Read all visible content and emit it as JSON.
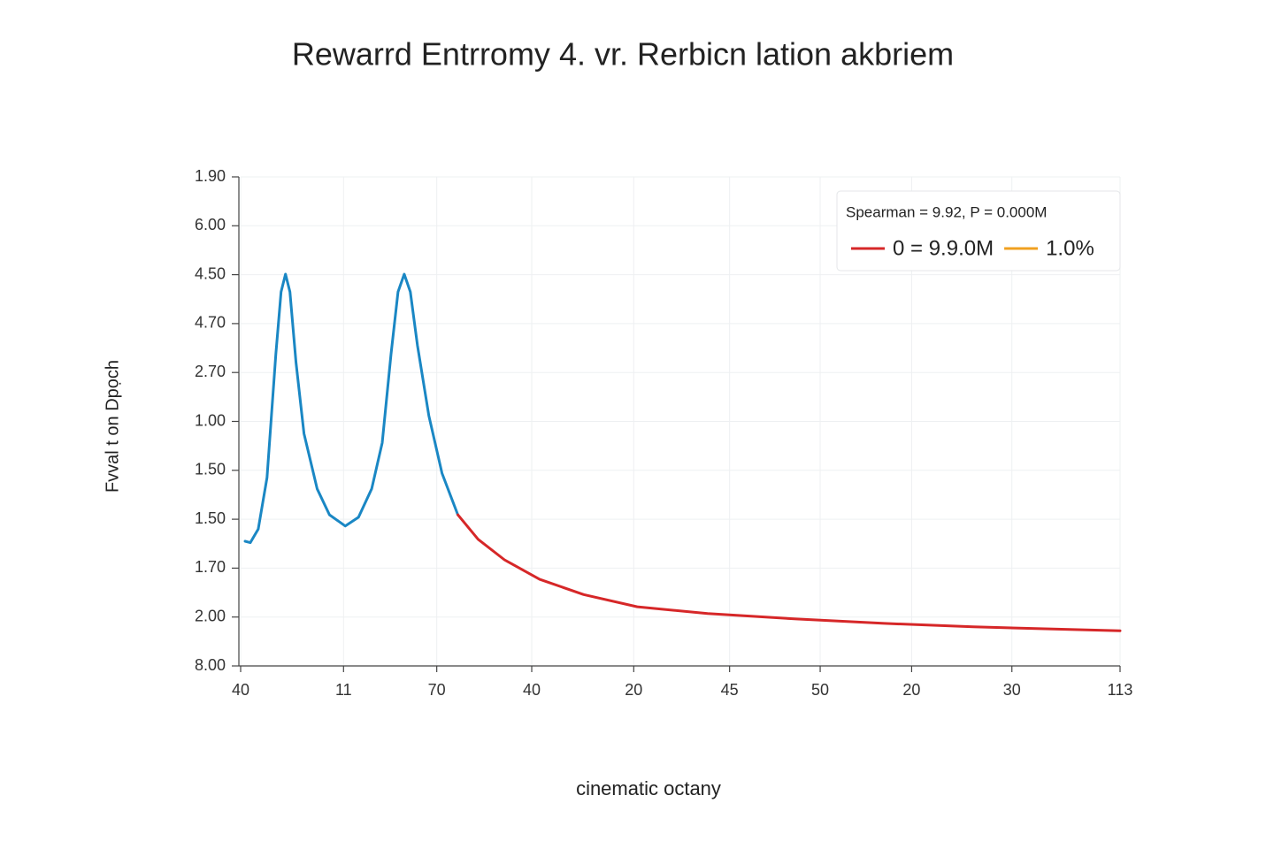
{
  "chart_data": {
    "type": "line",
    "title": "Rewarrd Entrromy 4. vr. Rerbicn lation akbriem",
    "x_label": "cinematic octany",
    "y_label": "Fvval t on Dpọch",
    "grid": true,
    "xlim": [
      0,
      100
    ],
    "ylim": [
      0,
      10
    ],
    "xticks": [
      {
        "value": 0,
        "label": "40"
      },
      {
        "value": 11.7,
        "label": "11"
      },
      {
        "value": 22.3,
        "label": "70"
      },
      {
        "value": 33.1,
        "label": "40"
      },
      {
        "value": 44.7,
        "label": "20"
      },
      {
        "value": 55.6,
        "label": "45"
      },
      {
        "value": 65.9,
        "label": "50"
      },
      {
        "value": 76.3,
        "label": "20"
      },
      {
        "value": 87.7,
        "label": "30"
      },
      {
        "value": 100,
        "label": "113"
      }
    ],
    "yticks": [
      {
        "value": 10,
        "label": "1.90"
      },
      {
        "value": 9,
        "label": "6.00"
      },
      {
        "value": 8,
        "label": "4.50"
      },
      {
        "value": 7,
        "label": "4.70"
      },
      {
        "value": 6,
        "label": "2.70"
      },
      {
        "value": 5,
        "label": "1.00"
      },
      {
        "value": 4,
        "label": "1.50"
      },
      {
        "value": 3,
        "label": "1.50"
      },
      {
        "value": 2,
        "label": "1.70"
      },
      {
        "value": 1,
        "label": "2.00"
      },
      {
        "value": 0,
        "label": "8.00"
      }
    ],
    "legend_title": "Spearman = 9.92, P = 0.000M",
    "legend_position": "upper right",
    "series": [
      {
        "color": "#1a87c4",
        "x": [
          0.5,
          1.1,
          2.0,
          3.0,
          4.0,
          4.6,
          5.1,
          5.6,
          6.3,
          7.2,
          8.7,
          10.1,
          11.9,
          13.4,
          14.9,
          16.1,
          17.1,
          17.9,
          18.6,
          19.3,
          20.1,
          21.4,
          22.9,
          24.7
        ],
        "values": [
          2.55,
          2.52,
          2.8,
          3.85,
          6.38,
          7.65,
          8.01,
          7.65,
          6.2,
          4.75,
          3.62,
          3.09,
          2.86,
          3.04,
          3.62,
          4.56,
          6.38,
          7.65,
          8.01,
          7.65,
          6.56,
          5.12,
          3.94,
          3.09
        ]
      },
      {
        "name": "0 = 9.9.0M",
        "color": "#d62728",
        "x": [
          24.7,
          27.0,
          30.0,
          34.0,
          39.0,
          45.1,
          53.1,
          63.2,
          73.2,
          83.3,
          100
        ],
        "values": [
          3.09,
          2.59,
          2.17,
          1.77,
          1.46,
          1.21,
          1.07,
          0.96,
          0.87,
          0.8,
          0.72
        ]
      },
      {
        "name": "1.0%",
        "color": "#f0a020",
        "x": [],
        "values": []
      }
    ]
  }
}
